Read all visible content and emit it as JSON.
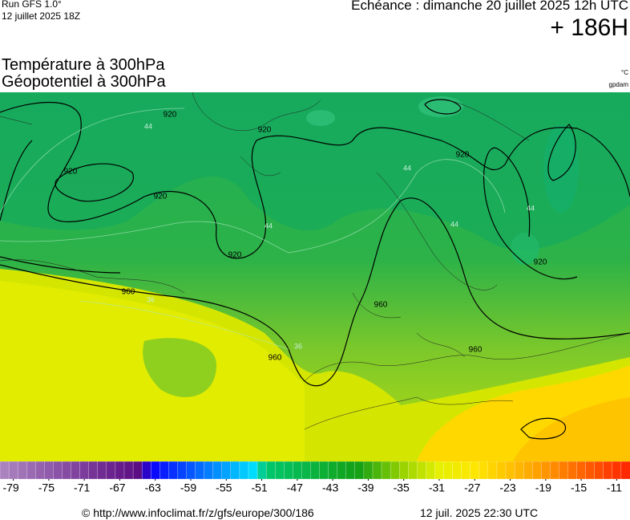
{
  "header": {
    "run": "Run GFS 1.0°",
    "run_date": "12 juillet 2025 18Z",
    "echeance": "Echéance : dimanche 20 juillet 2025 12h UTC",
    "lead": "+ 186H",
    "title1": "Température à 300hPa",
    "title2": "Géopotentiel à 300hPa",
    "unit1": "°C",
    "unit2": "gpdam"
  },
  "map": {
    "geopotential_labels": [
      920,
      920,
      920,
      920,
      920,
      920,
      920,
      960,
      960,
      960,
      960
    ],
    "temperature_labels": [
      44,
      44,
      44,
      44,
      44,
      36,
      36
    ]
  },
  "colorbar": {
    "lim": [
      -80,
      -9
    ],
    "ticks": [
      -79,
      -75,
      -71,
      -67,
      -63,
      -59,
      -55,
      -51,
      -47,
      -43,
      -39,
      -35,
      -31,
      -27,
      -23,
      -19,
      -15,
      -11
    ]
  },
  "footer": {
    "url": "© http://www.infoclimat.fr/z/gfs/europe/300/186",
    "date": "12 juil. 2025 22:30 UTC"
  }
}
